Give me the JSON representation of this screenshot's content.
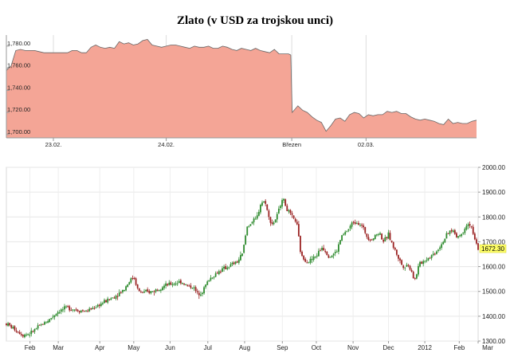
{
  "title": "Zlato (v USD za trojskou unci)",
  "chart_data": [
    {
      "type": "area",
      "name": "intraday",
      "color_fill": "#f4a596",
      "color_line": "#666666",
      "y_ticks": [
        "1,700.00",
        "1,720.00",
        "1,740.00",
        "1,760.00",
        "1,780.00"
      ],
      "y_tick_values": [
        1700,
        1720,
        1740,
        1760,
        1780
      ],
      "ylim": [
        1697,
        1790
      ],
      "x_ticks": [
        {
          "label": "23.02.",
          "x": 0.1
        },
        {
          "label": "24.02.",
          "x": 0.34
        },
        {
          "label": "Březen",
          "x": 0.607
        },
        {
          "label": "02.03.",
          "x": 0.765
        }
      ],
      "series": [
        {
          "points": [
            [
              0.0,
              1758
            ],
            [
              0.01,
              1762
            ],
            [
              0.02,
              1776
            ],
            [
              0.03,
              1777
            ],
            [
              0.04,
              1776
            ],
            [
              0.05,
              1776
            ],
            [
              0.06,
              1776
            ],
            [
              0.07,
              1775
            ],
            [
              0.08,
              1774
            ],
            [
              0.09,
              1774
            ],
            [
              0.1,
              1774
            ],
            [
              0.11,
              1774
            ],
            [
              0.12,
              1774
            ],
            [
              0.13,
              1774
            ],
            [
              0.14,
              1776
            ],
            [
              0.15,
              1776
            ],
            [
              0.16,
              1774
            ],
            [
              0.17,
              1774
            ],
            [
              0.18,
              1779
            ],
            [
              0.19,
              1781
            ],
            [
              0.2,
              1779
            ],
            [
              0.21,
              1778
            ],
            [
              0.22,
              1779
            ],
            [
              0.23,
              1778
            ],
            [
              0.24,
              1784
            ],
            [
              0.25,
              1782
            ],
            [
              0.26,
              1783
            ],
            [
              0.27,
              1781
            ],
            [
              0.28,
              1782
            ],
            [
              0.29,
              1785
            ],
            [
              0.3,
              1786
            ],
            [
              0.31,
              1781
            ],
            [
              0.32,
              1780
            ],
            [
              0.33,
              1779
            ],
            [
              0.34,
              1780
            ],
            [
              0.35,
              1781
            ],
            [
              0.36,
              1781
            ],
            [
              0.37,
              1780
            ],
            [
              0.38,
              1779
            ],
            [
              0.39,
              1778
            ],
            [
              0.4,
              1780
            ],
            [
              0.41,
              1779
            ],
            [
              0.42,
              1779
            ],
            [
              0.43,
              1780
            ],
            [
              0.44,
              1778
            ],
            [
              0.45,
              1778
            ],
            [
              0.46,
              1780
            ],
            [
              0.47,
              1779
            ],
            [
              0.48,
              1777
            ],
            [
              0.49,
              1776
            ],
            [
              0.5,
              1778
            ],
            [
              0.51,
              1777
            ],
            [
              0.52,
              1776
            ],
            [
              0.53,
              1778
            ],
            [
              0.54,
              1776
            ],
            [
              0.55,
              1775
            ],
            [
              0.56,
              1774
            ],
            [
              0.57,
              1777
            ],
            [
              0.58,
              1773
            ],
            [
              0.59,
              1773
            ],
            [
              0.6,
              1773
            ],
            [
              0.605,
              1772
            ],
            [
              0.608,
              1720
            ],
            [
              0.62,
              1726
            ],
            [
              0.63,
              1722
            ],
            [
              0.64,
              1720
            ],
            [
              0.65,
              1716
            ],
            [
              0.66,
              1713
            ],
            [
              0.67,
              1711
            ],
            [
              0.68,
              1703
            ],
            [
              0.69,
              1708
            ],
            [
              0.7,
              1714
            ],
            [
              0.71,
              1715
            ],
            [
              0.72,
              1712
            ],
            [
              0.73,
              1718
            ],
            [
              0.74,
              1720
            ],
            [
              0.75,
              1719
            ],
            [
              0.76,
              1715
            ],
            [
              0.77,
              1718
            ],
            [
              0.78,
              1717
            ],
            [
              0.79,
              1718
            ],
            [
              0.8,
              1718
            ],
            [
              0.81,
              1721
            ],
            [
              0.82,
              1720
            ],
            [
              0.83,
              1721
            ],
            [
              0.84,
              1719
            ],
            [
              0.85,
              1719
            ],
            [
              0.86,
              1716
            ],
            [
              0.87,
              1714
            ],
            [
              0.88,
              1713
            ],
            [
              0.89,
              1714
            ],
            [
              0.9,
              1713
            ],
            [
              0.91,
              1712
            ],
            [
              0.92,
              1710
            ],
            [
              0.93,
              1709
            ],
            [
              0.94,
              1714
            ],
            [
              0.95,
              1710
            ],
            [
              0.96,
              1711
            ],
            [
              0.97,
              1710
            ],
            [
              0.98,
              1710
            ],
            [
              0.99,
              1712
            ],
            [
              1.0,
              1713
            ]
          ]
        }
      ]
    },
    {
      "type": "candlestick",
      "name": "daily",
      "up_color": "#2e8b2e",
      "down_color": "#9a2222",
      "y_ticks": [
        "1300.00",
        "1400.00",
        "1500.00",
        "1600.00",
        "1700.00",
        "1800.00",
        "1900.00",
        "2000.00"
      ],
      "y_tick_values": [
        1300,
        1400,
        1500,
        1600,
        1700,
        1800,
        1900,
        2000
      ],
      "ylim": [
        1300,
        2000
      ],
      "x_ticks": [
        {
          "label": "Feb",
          "x": 0.05
        },
        {
          "label": "Mar",
          "x": 0.11
        },
        {
          "label": "Apr",
          "x": 0.198
        },
        {
          "label": "May",
          "x": 0.27
        },
        {
          "label": "Jun",
          "x": 0.347
        },
        {
          "label": "Jul",
          "x": 0.427
        },
        {
          "label": "Aug",
          "x": 0.505
        },
        {
          "label": "Sep",
          "x": 0.585
        },
        {
          "label": "Oct",
          "x": 0.657
        },
        {
          "label": "Nov",
          "x": 0.735
        },
        {
          "label": "Dec",
          "x": 0.81
        },
        {
          "label": "2012",
          "x": 0.887
        },
        {
          "label": "Feb",
          "x": 0.96
        },
        {
          "label": "Mar",
          "x": 1.03
        }
      ],
      "last_value": "1672.30",
      "last_value_numeric": 1672.3,
      "trend": [
        [
          0.0,
          1370
        ],
        [
          0.02,
          1345
        ],
        [
          0.035,
          1325
        ],
        [
          0.05,
          1330
        ],
        [
          0.07,
          1360
        ],
        [
          0.09,
          1385
        ],
        [
          0.11,
          1420
        ],
        [
          0.13,
          1435
        ],
        [
          0.15,
          1425
        ],
        [
          0.17,
          1420
        ],
        [
          0.19,
          1440
        ],
        [
          0.21,
          1460
        ],
        [
          0.23,
          1480
        ],
        [
          0.25,
          1510
        ],
        [
          0.26,
          1540
        ],
        [
          0.27,
          1560
        ],
        [
          0.28,
          1500
        ],
        [
          0.29,
          1495
        ],
        [
          0.31,
          1500
        ],
        [
          0.33,
          1520
        ],
        [
          0.35,
          1530
        ],
        [
          0.37,
          1540
        ],
        [
          0.385,
          1520
        ],
        [
          0.395,
          1520
        ],
        [
          0.405,
          1490
        ],
        [
          0.415,
          1500
        ],
        [
          0.43,
          1550
        ],
        [
          0.45,
          1580
        ],
        [
          0.47,
          1600
        ],
        [
          0.49,
          1620
        ],
        [
          0.5,
          1650
        ],
        [
          0.505,
          1700
        ],
        [
          0.51,
          1760
        ],
        [
          0.52,
          1780
        ],
        [
          0.53,
          1790
        ],
        [
          0.54,
          1860
        ],
        [
          0.55,
          1860
        ],
        [
          0.555,
          1800
        ],
        [
          0.565,
          1770
        ],
        [
          0.575,
          1810
        ],
        [
          0.585,
          1880
        ],
        [
          0.595,
          1830
        ],
        [
          0.605,
          1800
        ],
        [
          0.615,
          1780
        ],
        [
          0.625,
          1640
        ],
        [
          0.64,
          1620
        ],
        [
          0.655,
          1640
        ],
        [
          0.67,
          1680
        ],
        [
          0.685,
          1640
        ],
        [
          0.7,
          1660
        ],
        [
          0.71,
          1720
        ],
        [
          0.725,
          1750
        ],
        [
          0.735,
          1780
        ],
        [
          0.745,
          1780
        ],
        [
          0.755,
          1760
        ],
        [
          0.765,
          1720
        ],
        [
          0.775,
          1710
        ],
        [
          0.79,
          1740
        ],
        [
          0.8,
          1700
        ],
        [
          0.81,
          1730
        ],
        [
          0.82,
          1680
        ],
        [
          0.83,
          1640
        ],
        [
          0.84,
          1600
        ],
        [
          0.85,
          1610
        ],
        [
          0.86,
          1580
        ],
        [
          0.865,
          1540
        ],
        [
          0.875,
          1610
        ],
        [
          0.89,
          1630
        ],
        [
          0.905,
          1650
        ],
        [
          0.915,
          1670
        ],
        [
          0.925,
          1700
        ],
        [
          0.935,
          1730
        ],
        [
          0.945,
          1750
        ],
        [
          0.955,
          1720
        ],
        [
          0.965,
          1730
        ],
        [
          0.975,
          1770
        ],
        [
          0.985,
          1770
        ],
        [
          0.99,
          1720
        ],
        [
          1.0,
          1672
        ]
      ]
    }
  ]
}
